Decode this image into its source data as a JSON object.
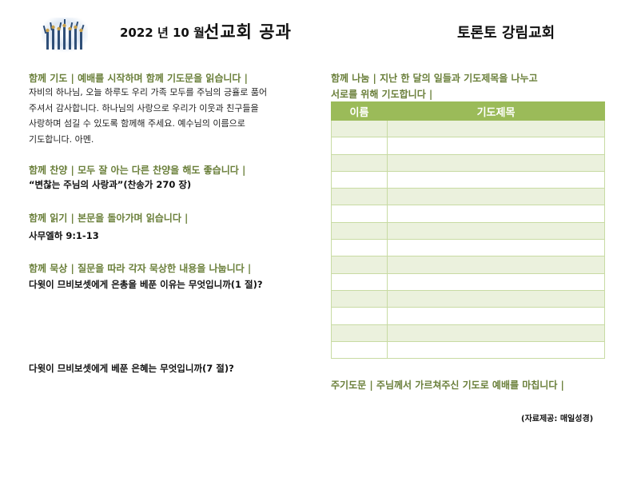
{
  "header": {
    "year_month": "2022 년 10 월",
    "title": "선교회 공과",
    "church": "토론토 강림교회"
  },
  "left": {
    "prayer": {
      "heading": "함께 기도 | 예배를 시작하며 함께 기도문을 읽습니다 |",
      "lines": [
        "자비의 하나님, 오늘 하루도 우리 가족 모두를 주님의 긍휼로 품어",
        "주셔서 감사합니다. 하나님의 사랑으로 우리가 이웃과 친구들을",
        "사랑하며 섬길 수 있도록 함께해 주세요. 예수님의 이름으로",
        "기도합니다. 아멘."
      ]
    },
    "praise": {
      "heading": "함께 찬양 | 모두 잘 아는 다른 찬양을 해도 좋습니다 |",
      "song": "“변찮는 주님의 사랑과”(찬송가 270 장)"
    },
    "reading": {
      "heading": "함께 읽기 | 본문을 돌아가며 읽습니다 |",
      "passage": "사무엘하 9:1-13"
    },
    "meditation": {
      "heading": "함께 묵상 | 질문을 따라 각자 묵상한 내용을 나눕니다 |",
      "q1": "다윗이 므비보셋에게 은총을 베푼 이유는 무엇입니까(1 절)?",
      "q2": "다윗이 므비보셋에게 베푼 은혜는 무엇입니까(7 절)?"
    }
  },
  "right": {
    "sharing": {
      "heading_line1": "함께 나눔 | 지난 한 달의 일들과 기도제목을 나누고",
      "heading_line2": "서로를 위해 기도합니다 |"
    },
    "table": {
      "col_name": "이름",
      "col_prayer": "기도제목",
      "row_count": 14
    },
    "closing": "주기도문 | 주님께서 가르쳐주신 기도로 예배를 마칩니다 |",
    "credit": "(자료제공: 매일성경)"
  },
  "colors": {
    "heading_green": "#6a7f3a",
    "table_header": "#9bbb59",
    "table_stripe": "#ebf1dd"
  }
}
